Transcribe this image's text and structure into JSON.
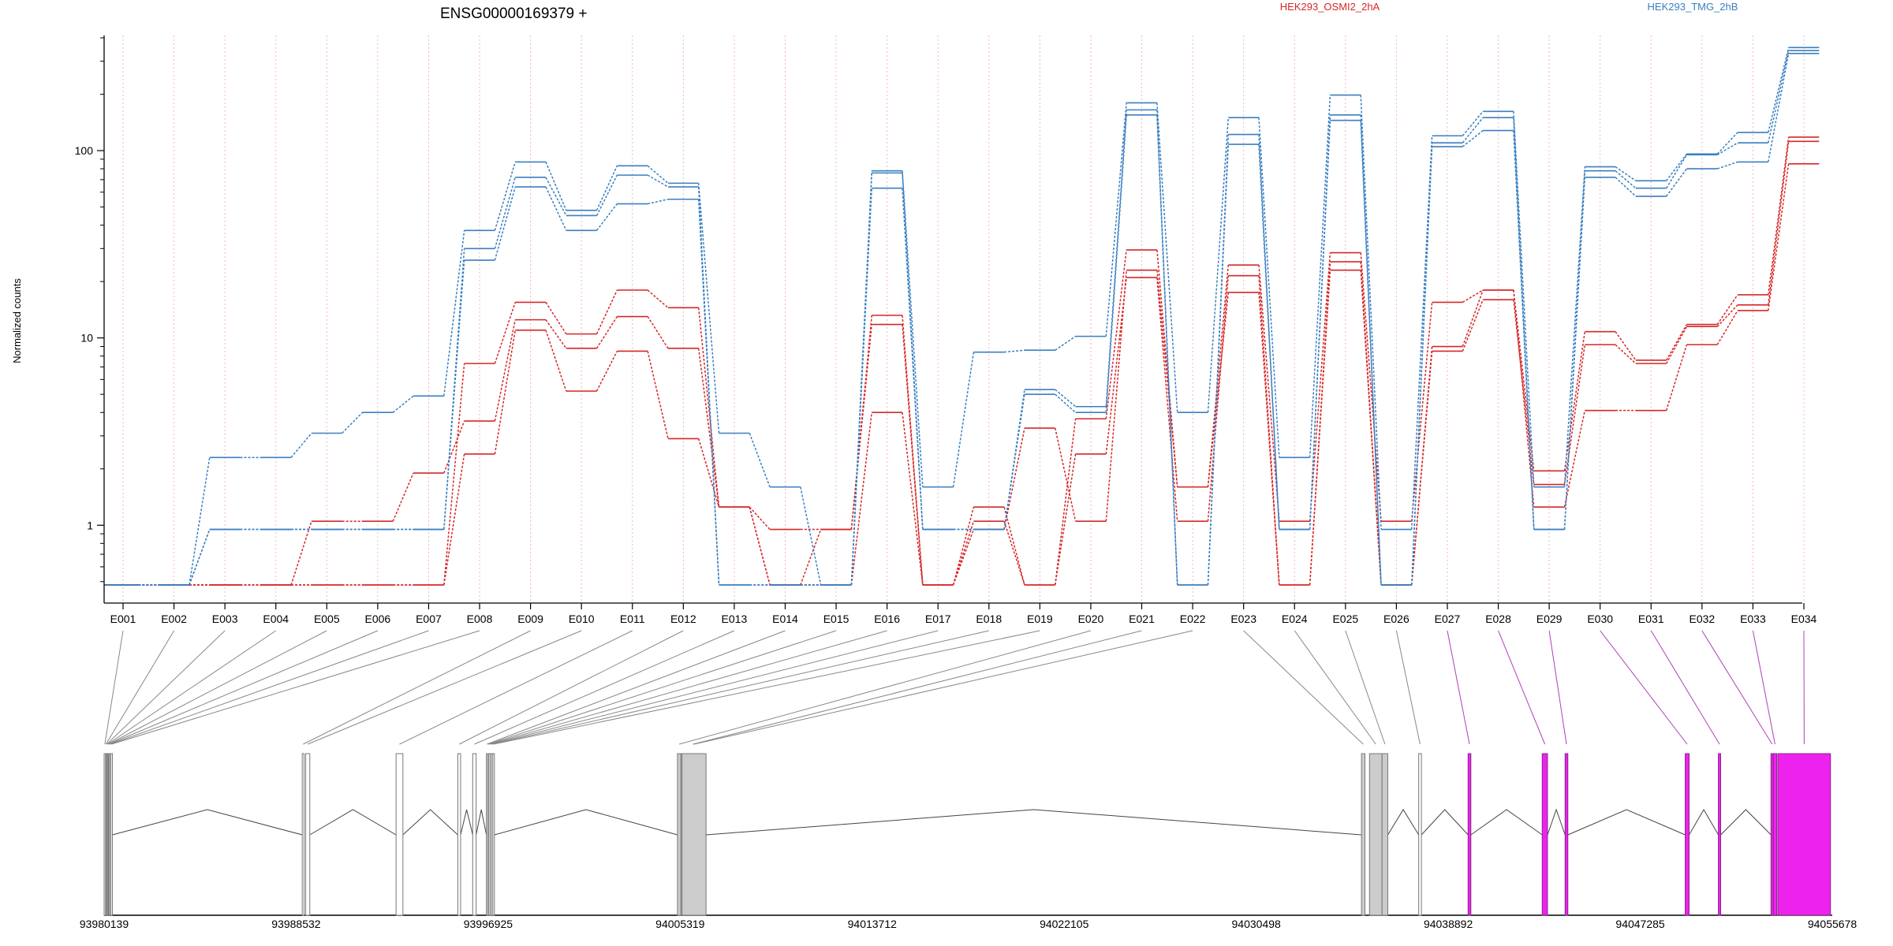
{
  "chart_data": {
    "type": "line",
    "title": "ENSG00000169379 +",
    "ylabel": "Normalized counts",
    "yscale": "log",
    "ylim": [
      0.48,
      400
    ],
    "yticks": [
      1,
      10,
      100
    ],
    "grid": "vertical dotted at each exon",
    "categories": [
      "E001",
      "E002",
      "E003",
      "E004",
      "E005",
      "E006",
      "E007",
      "E008",
      "E009",
      "E010",
      "E011",
      "E012",
      "E013",
      "E014",
      "E015",
      "E016",
      "E017",
      "E018",
      "E019",
      "E020",
      "E021",
      "E022",
      "E023",
      "E024",
      "E025",
      "E026",
      "E027",
      "E028",
      "E029",
      "E030",
      "E031",
      "E032",
      "E033",
      "E034"
    ],
    "legend": [
      {
        "name": "HEK293_OSMI2_2hA",
        "color": "#d62728",
        "position": "top-center"
      },
      {
        "name": "HEK293_TMG_2hB",
        "color": "#3a7fc1",
        "position": "top-right"
      }
    ],
    "series": [
      {
        "name": "HEK293_OSMI2_2hA",
        "color": "#d62728",
        "values": [
          0.48,
          0.48,
          0.48,
          0.48,
          0.48,
          0.48,
          0.48,
          2.4,
          11,
          5.2,
          8.5,
          2.9,
          1.25,
          0.48,
          0.48,
          4.0,
          0.48,
          0.95,
          3.3,
          1.05,
          23,
          1.6,
          17.5,
          0.48,
          23,
          0.48,
          9,
          18,
          1.25,
          4.1,
          4.1,
          9.2,
          14,
          85
        ]
      },
      {
        "name": "HEK293_OSMI2_2hA",
        "color": "#d62728",
        "values": [
          0.48,
          0.48,
          0.48,
          0.48,
          1.05,
          1.05,
          1.9,
          3.6,
          12.5,
          8.8,
          13,
          8.8,
          1.25,
          0.48,
          0.95,
          11.8,
          0.48,
          1.05,
          0.48,
          2.4,
          21,
          1.05,
          21.5,
          0.48,
          25.5,
          0.48,
          8.5,
          16,
          1.65,
          9.2,
          7.3,
          11.5,
          15,
          112
        ]
      },
      {
        "name": "HEK293_OSMI2_2hA",
        "color": "#d62728",
        "values": [
          0.48,
          0.48,
          0.48,
          0.48,
          0.48,
          0.48,
          0.48,
          7.3,
          15.5,
          10.5,
          18,
          14.5,
          1.25,
          0.95,
          0.95,
          13.2,
          0.48,
          1.25,
          0.48,
          3.7,
          29.5,
          1.6,
          24.5,
          1.05,
          28.5,
          1.05,
          15.5,
          18,
          1.95,
          10.8,
          7.6,
          11.8,
          17,
          118
        ]
      },
      {
        "name": "HEK293_TMG_2hB",
        "color": "#3a7fc1",
        "values": [
          0.48,
          0.48,
          0.95,
          0.95,
          0.95,
          0.95,
          0.95,
          26,
          64,
          37.5,
          52,
          55,
          0.48,
          0.48,
          0.48,
          63,
          0.95,
          0.95,
          5,
          4.0,
          155,
          0.48,
          108,
          0.95,
          145,
          0.48,
          105,
          128,
          0.95,
          72,
          57,
          80,
          87,
          330
        ]
      },
      {
        "name": "HEK293_TMG_2hB",
        "color": "#3a7fc1",
        "values": [
          0.48,
          0.48,
          0.95,
          0.95,
          0.95,
          0.95,
          0.95,
          30,
          72,
          45,
          74,
          64,
          0.48,
          0.48,
          0.48,
          76,
          0.95,
          0.95,
          5.3,
          4.3,
          165,
          0.48,
          122,
          0.95,
          155,
          0.48,
          110,
          150,
          0.95,
          78,
          63,
          95,
          110,
          342
        ]
      },
      {
        "name": "HEK293_TMG_2hB",
        "color": "#3a7fc1",
        "values": [
          0.48,
          0.48,
          2.3,
          2.3,
          3.1,
          4.0,
          4.9,
          37.5,
          87,
          48,
          83,
          67,
          3.1,
          1.6,
          0.48,
          78,
          1.6,
          8.4,
          8.6,
          10.2,
          180,
          4.0,
          150,
          2.3,
          198,
          0.95,
          120,
          162,
          1.6,
          82,
          69,
          96,
          125,
          355
        ]
      }
    ],
    "gene_model": {
      "coordinate_ticks": [
        "93980139",
        "93988532",
        "93996925",
        "94005319",
        "94013712",
        "94022105",
        "94030498",
        "94038892",
        "94047285",
        "94055678"
      ],
      "coordinate_range": [
        93980139,
        94055678
      ],
      "exons": [
        {
          "id": "E001",
          "start": 93980139,
          "end": 93980200,
          "fill": "#ffffff",
          "line": "#777777"
        },
        {
          "id": "E002",
          "start": 93980200,
          "end": 93980240,
          "fill": "#ffffff",
          "line": "#777777"
        },
        {
          "id": "E003",
          "start": 93980240,
          "end": 93980270,
          "fill": "#ffffff",
          "line": "#777777"
        },
        {
          "id": "E004",
          "start": 93980270,
          "end": 93980310,
          "fill": "#ffffff",
          "line": "#777777"
        },
        {
          "id": "E005",
          "start": 93980310,
          "end": 93980340,
          "fill": "#ffffff",
          "line": "#777777"
        },
        {
          "id": "E006",
          "start": 93980340,
          "end": 93980380,
          "fill": "#ffffff",
          "line": "#777777"
        },
        {
          "id": "E007",
          "start": 93980380,
          "end": 93980430,
          "fill": "#ffffff",
          "line": "#777777"
        },
        {
          "id": "E008",
          "start": 93980430,
          "end": 93980500,
          "fill": "#ffffff",
          "line": "#777777"
        },
        {
          "id": "E009",
          "start": 93988800,
          "end": 93988880,
          "fill": "#ffffff",
          "line": "#777777"
        },
        {
          "id": "E010",
          "start": 93988950,
          "end": 93989130,
          "fill": "#ffffff",
          "line": "#777777"
        },
        {
          "id": "E011",
          "start": 93992900,
          "end": 93993200,
          "fill": "#ffffff",
          "line": "#777777"
        },
        {
          "id": "E012",
          "start": 93995600,
          "end": 93995720,
          "fill": "#ffffff",
          "line": "#777777"
        },
        {
          "id": "E013",
          "start": 93996250,
          "end": 93996400,
          "fill": "#ffffff",
          "line": "#777777"
        },
        {
          "id": "E014",
          "start": 93996850,
          "end": 93996900,
          "fill": "#ffffff",
          "line": "#777777"
        },
        {
          "id": "E015",
          "start": 93996900,
          "end": 93996950,
          "fill": "#ffffff",
          "line": "#777777"
        },
        {
          "id": "E016",
          "start": 93996950,
          "end": 93997010,
          "fill": "#ffffff",
          "line": "#777777"
        },
        {
          "id": "E017",
          "start": 93997010,
          "end": 93997070,
          "fill": "#ffffff",
          "line": "#777777"
        },
        {
          "id": "E018",
          "start": 93997070,
          "end": 93997130,
          "fill": "#ffffff",
          "line": "#777777"
        },
        {
          "id": "E019",
          "start": 93997130,
          "end": 93997200,
          "fill": "#ffffff",
          "line": "#777777"
        },
        {
          "id": "E020",
          "start": 94005200,
          "end": 94005350,
          "fill": "#cccccc",
          "line": "#777777"
        },
        {
          "id": "E021",
          "start": 94005350,
          "end": 94006400,
          "fill": "#cccccc",
          "line": "#777777"
        },
        {
          "id": "E022",
          "start": 94005400,
          "end": 94006450,
          "fill": "#cccccc",
          "line": "#777777"
        },
        {
          "id": "E023",
          "start": 94035100,
          "end": 94035250,
          "fill": "#cccccc",
          "line": "#777777"
        },
        {
          "id": "E024",
          "start": 94035450,
          "end": 94036000,
          "fill": "#cccccc",
          "line": "#777777"
        },
        {
          "id": "E025",
          "start": 94036000,
          "end": 94036250,
          "fill": "#cccccc",
          "line": "#777777"
        },
        {
          "id": "E026",
          "start": 94037600,
          "end": 94037720,
          "fill": "#ffffff",
          "line": "#777777"
        },
        {
          "id": "E027",
          "start": 94039760,
          "end": 94039880,
          "fill": "#ee22ee",
          "line": "#8a228a"
        },
        {
          "id": "E028",
          "start": 94043000,
          "end": 94043230,
          "fill": "#ee22ee",
          "line": "#8a228a"
        },
        {
          "id": "E029",
          "start": 94044000,
          "end": 94044120,
          "fill": "#ee22ee",
          "line": "#8a228a"
        },
        {
          "id": "E030",
          "start": 94049250,
          "end": 94049420,
          "fill": "#ee22ee",
          "line": "#8a228a"
        },
        {
          "id": "E031",
          "start": 94050700,
          "end": 94050800,
          "fill": "#ee22ee",
          "line": "#8a228a"
        },
        {
          "id": "E032",
          "start": 94053000,
          "end": 94053100,
          "fill": "#ee22ee",
          "line": "#8a228a"
        },
        {
          "id": "E033",
          "start": 94053100,
          "end": 94053250,
          "fill": "#ee22ee",
          "line": "#8a228a"
        },
        {
          "id": "E034",
          "start": 94053300,
          "end": 94055600,
          "fill": "#ee22ee",
          "line": "#8a228a"
        }
      ],
      "introns": [
        [
          93980500,
          93988800
        ],
        [
          93989130,
          93992900
        ],
        [
          93993200,
          93995600
        ],
        [
          93995720,
          93996250
        ],
        [
          93996400,
          93996850
        ],
        [
          93996850,
          93997200
        ],
        [
          93997200,
          94005200
        ],
        [
          94006450,
          94035100
        ],
        [
          94036250,
          94037600
        ],
        [
          94037720,
          94039760
        ],
        [
          94039880,
          94043000
        ],
        [
          94043230,
          94044000
        ],
        [
          94044120,
          94049250
        ],
        [
          94049420,
          94050700
        ],
        [
          94050800,
          94053000
        ]
      ]
    }
  }
}
